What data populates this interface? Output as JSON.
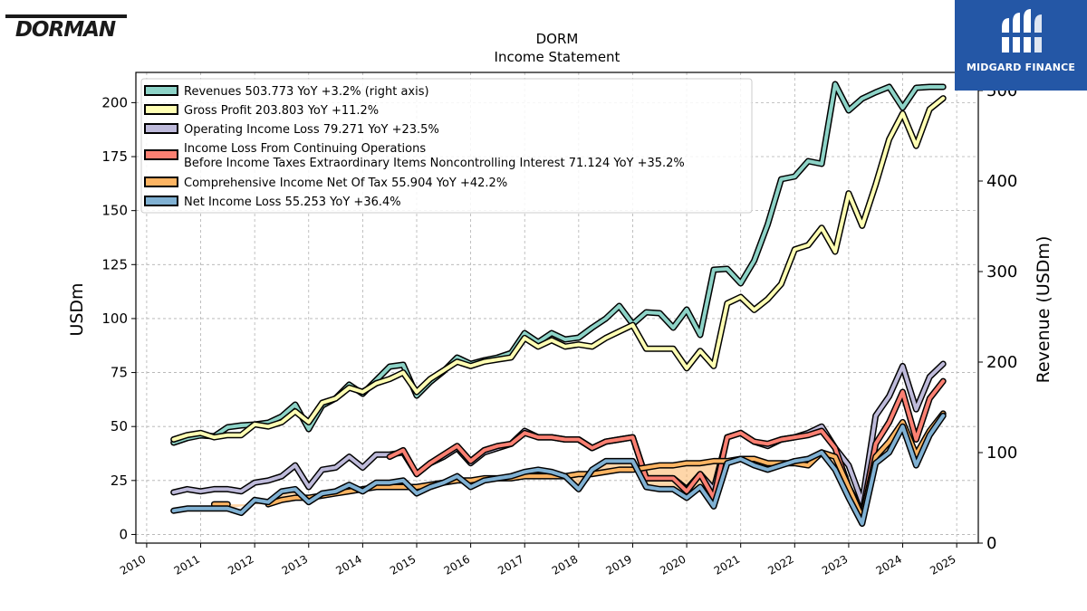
{
  "brand": {
    "left_logo": "DORMAN",
    "right_logo": "MIDGARD FINANCE"
  },
  "chart_data": {
    "type": "line",
    "title": "DORM",
    "subtitle": "Income Statement",
    "ylabel": "USDm",
    "ylabel_right": "Revenue (USDm)",
    "ylim": [
      -4,
      214
    ],
    "ylim_right": [
      0,
      520
    ],
    "xlim": [
      2009.8,
      2025.4
    ],
    "y_ticks": [
      0,
      25,
      50,
      75,
      100,
      125,
      150,
      175,
      200
    ],
    "y_ticks_right": [
      0,
      100,
      200,
      300,
      400,
      500
    ],
    "x_ticks": [
      "2010",
      "2011",
      "2012",
      "2013",
      "2014",
      "2015",
      "2016",
      "2017",
      "2018",
      "2019",
      "2020",
      "2021",
      "2022",
      "2023",
      "2024",
      "2025"
    ],
    "grid": true,
    "legend_position": "top-left",
    "x": [
      2010.5,
      2010.75,
      2011.0,
      2011.25,
      2011.5,
      2011.75,
      2012.0,
      2012.25,
      2012.5,
      2012.75,
      2013.0,
      2013.25,
      2013.5,
      2013.75,
      2014.0,
      2014.25,
      2014.5,
      2014.75,
      2015.0,
      2015.25,
      2015.5,
      2015.75,
      2016.0,
      2016.25,
      2016.5,
      2016.75,
      2017.0,
      2017.25,
      2017.5,
      2017.75,
      2018.0,
      2018.25,
      2018.5,
      2018.75,
      2019.0,
      2019.25,
      2019.5,
      2019.75,
      2020.0,
      2020.25,
      2020.5,
      2020.75,
      2021.0,
      2021.25,
      2021.5,
      2021.75,
      2022.0,
      2022.25,
      2022.5,
      2022.75,
      2023.0,
      2023.25,
      2023.5,
      2023.75,
      2024.0,
      2024.25,
      2024.5,
      2024.75
    ],
    "series": [
      {
        "name": "Revenues  503.773 YoY +3.2% (right axis)",
        "axis": "right",
        "color": "#8dd3c7",
        "values": [
          111,
          116,
          119,
          118,
          128,
          130,
          131,
          133,
          140,
          153,
          126,
          152,
          160,
          175,
          165,
          180,
          195,
          197,
          163,
          178,
          190,
          205,
          198,
          202,
          205,
          210,
          232,
          222,
          232,
          225,
          227,
          238,
          248,
          262,
          242,
          255,
          254,
          238,
          258,
          230,
          302,
          303,
          287,
          312,
          352,
          402,
          405,
          422,
          419,
          507,
          478,
          491,
          498,
          504,
          481,
          503,
          504,
          504
        ]
      },
      {
        "name": "Gross Profit  203.803 YoY +11.2%",
        "axis": "left",
        "color": "#ffffb3",
        "values": [
          44,
          46,
          47,
          45,
          46,
          46,
          51,
          50,
          52,
          57,
          52,
          61,
          63,
          68,
          66,
          70,
          72,
          75,
          66,
          72,
          76,
          80,
          78,
          80,
          81,
          82,
          91,
          87,
          90,
          87,
          88,
          87,
          91,
          94,
          97,
          86,
          86,
          86,
          77,
          85,
          78,
          107,
          110,
          104,
          109,
          116,
          132,
          134,
          142,
          131,
          158,
          143,
          162,
          183,
          195,
          180,
          197,
          202
        ]
      },
      {
        "name": "Operating Income Loss  79.271 YoY +23.5%",
        "axis": "left",
        "color": "#bebada",
        "values": [
          19.5,
          21,
          20,
          21,
          21,
          20,
          24,
          25,
          27,
          32,
          22,
          30,
          31,
          36,
          31,
          37,
          37,
          38,
          28,
          33,
          36,
          40,
          33,
          38,
          40,
          42,
          48,
          45,
          45,
          44,
          44,
          40,
          43,
          44,
          45,
          26,
          26,
          26,
          21,
          28,
          21,
          45,
          47,
          43,
          41,
          44,
          45,
          47,
          50,
          40,
          32,
          15,
          55,
          64,
          78,
          58,
          73,
          79
        ]
      },
      {
        "name": "Income Loss From Continuing Operations\nBefore Income Taxes Extraordinary Items Noncontrolling Interest  71.124 YoY +35.2%",
        "axis": "left",
        "color": "#fb8072",
        "values": [
          null,
          null,
          null,
          null,
          null,
          null,
          null,
          null,
          null,
          null,
          null,
          null,
          null,
          null,
          null,
          null,
          36,
          39,
          28,
          33,
          37,
          41,
          34,
          39,
          41,
          42,
          47,
          45,
          45,
          44,
          44,
          40,
          43,
          44,
          45,
          26,
          26,
          26,
          20,
          28,
          17,
          45,
          47,
          43,
          42,
          44,
          45,
          46,
          48,
          40,
          22,
          10,
          42,
          52,
          66,
          44,
          63,
          71
        ]
      },
      {
        "name": "Comprehensive Income Net Of Tax  55.904 YoY +42.2%",
        "axis": "left",
        "color": "#fdb462",
        "values": [
          null,
          null,
          null,
          14,
          14,
          null,
          null,
          14,
          16,
          17,
          17,
          18,
          19,
          20,
          21,
          22,
          22,
          22,
          22,
          23,
          24,
          25,
          25,
          26,
          26,
          26,
          27,
          27,
          27,
          27,
          28,
          28,
          29,
          30,
          30,
          31,
          32,
          32,
          33,
          33,
          34,
          34,
          35,
          35,
          33,
          33,
          33,
          32,
          38,
          36,
          22,
          8,
          36,
          43,
          52,
          37,
          48,
          56
        ]
      },
      {
        "name": "Net Income Loss  55.253 YoY +36.4%",
        "axis": "left",
        "color": "#80b1d3",
        "values": [
          11,
          12,
          12,
          12,
          12,
          10,
          16,
          15,
          20,
          21,
          15,
          19,
          20,
          23,
          20,
          24,
          24,
          25,
          19,
          22,
          24,
          27,
          22,
          25,
          26,
          27,
          29,
          30,
          29,
          27,
          21,
          30,
          34,
          34,
          34,
          22,
          21,
          21,
          17,
          22,
          13,
          33,
          35,
          32,
          30,
          32,
          34,
          35,
          38,
          30,
          17,
          5,
          33,
          38,
          50,
          32,
          46,
          55
        ]
      }
    ]
  }
}
